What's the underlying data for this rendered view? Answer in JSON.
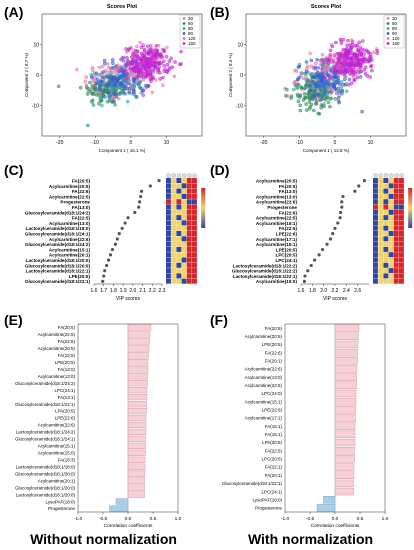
{
  "panel_labels": [
    "(A)",
    "(B)",
    "(C)",
    "(D)",
    "(E)",
    "(F)"
  ],
  "captions": {
    "left": "Without normalization",
    "right": "With normalization"
  },
  "colors": {
    "pink": "#e879a8",
    "magenta": "#c026d3",
    "blue": "#3b5bd6",
    "teal": "#3aa0a0",
    "green": "#2e8b57",
    "bar_pink": "#f7d0d6",
    "bar_blue": "#a9cfe8",
    "dot": "#555555"
  },
  "chart_data": [
    {
      "type": "scatter",
      "title": "Scores Plot",
      "xlabel": "Component 1 ( 16.1 %)",
      "ylabel": "Component 2 ( 8.7 %)",
      "xlim": [
        -25,
        20
      ],
      "ylim": [
        -20,
        20
      ],
      "xticks": [
        "-20",
        "-10",
        "0",
        "10"
      ],
      "yticks": [
        "-10",
        "0",
        "10"
      ],
      "legend": {
        "placement": "top-right",
        "entries": [
          "30",
          "60",
          "80",
          "90",
          "120",
          "150"
        ]
      },
      "clusters": [
        {
          "name": "30",
          "color": "pink",
          "cx": -6,
          "cy": -2,
          "sx": 6.5,
          "sy": 6,
          "n": 90
        },
        {
          "name": "60",
          "color": "green",
          "cx": -7,
          "cy": -5,
          "sx": 6,
          "sy": 5,
          "n": 90
        },
        {
          "name": "80",
          "color": "teal",
          "cx": -3,
          "cy": -3,
          "sx": 6,
          "sy": 5.5,
          "n": 90
        },
        {
          "name": "90",
          "color": "blue",
          "cx": -2,
          "cy": -1,
          "sx": 6.5,
          "sy": 6,
          "n": 110
        },
        {
          "name": "120",
          "color": "pink",
          "cx": 3,
          "cy": 3,
          "sx": 6,
          "sy": 5.5,
          "n": 90
        },
        {
          "name": "150",
          "color": "magenta",
          "cx": 5,
          "cy": 4,
          "sx": 5.5,
          "sy": 5,
          "n": 200
        }
      ]
    },
    {
      "type": "scatter",
      "title": "Scores Plot",
      "xlabel": "Component 1 ( 14.8 %)",
      "ylabel": "Component 2 ( 8.4 %)",
      "xlim": [
        -25,
        20
      ],
      "ylim": [
        -20,
        20
      ],
      "xticks": [
        "-20",
        "-10",
        "0",
        "10"
      ],
      "yticks": [
        "-10",
        "0",
        "10"
      ],
      "legend": {
        "placement": "top-right",
        "entries": [
          "30",
          "60",
          "80",
          "90",
          "120",
          "150"
        ]
      },
      "clusters": [
        {
          "name": "30",
          "color": "pink",
          "cx": -6,
          "cy": -3,
          "sx": 6.5,
          "sy": 6,
          "n": 90
        },
        {
          "name": "60",
          "color": "green",
          "cx": -6,
          "cy": -6,
          "sx": 6,
          "sy": 5,
          "n": 110
        },
        {
          "name": "80",
          "color": "teal",
          "cx": -3,
          "cy": -2,
          "sx": 6,
          "sy": 5.5,
          "n": 90
        },
        {
          "name": "90",
          "color": "blue",
          "cx": -2,
          "cy": -1,
          "sx": 6.5,
          "sy": 6,
          "n": 110
        },
        {
          "name": "120",
          "color": "pink",
          "cx": 3,
          "cy": 4,
          "sx": 6,
          "sy": 5.5,
          "n": 90
        },
        {
          "name": "150",
          "color": "magenta",
          "cx": 5,
          "cy": 5,
          "sx": 5.5,
          "sy": 5,
          "n": 200
        }
      ]
    },
    {
      "type": "scatter",
      "xlabel": "VIP scores",
      "xlim": [
        1.6,
        2.3
      ],
      "xticks": [
        1.6,
        1.7,
        1.8,
        1.9,
        2.0,
        2.1,
        2.2,
        2.3
      ],
      "heat_legend": {
        "high": "High",
        "low": "Low"
      },
      "heat_columns": [
        "30",
        "60",
        "80",
        "90",
        "120",
        "150"
      ],
      "features": [
        "FA(20:5)",
        "Acylcarnitine(20:5)",
        "FA(22:6)",
        "Acylcarnitine(22:5)",
        "Progesterone",
        "FA(13:0)",
        "Glucosylceramide(d18:1/24:2)",
        "FA(22:5)",
        "Acylcarnitine(13:0)",
        "Lactosylceramide(d18:1/18:0)",
        "Glucosylceramide(d18:1/24:1)",
        "Acylcarnitine(22:6)",
        "Glucosylceramide(d18:1/24:2)",
        "Acylcarnitine(15:1)",
        "Acylcarnitine(20:1)",
        "Lactosylceramide(d18:1/20:0)",
        "Glucosylceramide(d18:1/20:0)",
        "Lactosylceramide(d18:1/22:1)",
        "LPE(20:5)",
        "Glucosylceramide(d18:1/22:1)"
      ],
      "values": [
        2.27,
        2.18,
        2.09,
        2.08,
        2.07,
        2.06,
        2.02,
        1.95,
        1.92,
        1.89,
        1.86,
        1.84,
        1.82,
        1.79,
        1.77,
        1.75,
        1.73,
        1.71,
        1.7,
        1.69
      ],
      "heat_levels": [
        [
          -1,
          0,
          -1,
          0,
          1,
          1
        ],
        [
          -1,
          0,
          0,
          -1,
          1,
          1
        ],
        [
          -1,
          0,
          -1,
          0,
          1,
          1
        ],
        [
          -1,
          0,
          0,
          -1,
          1,
          1
        ],
        [
          1,
          0,
          1,
          0,
          -1,
          -1
        ],
        [
          -1,
          0,
          -1,
          0,
          1,
          1
        ],
        [
          -1,
          0,
          0,
          0,
          1,
          1
        ],
        [
          -1,
          0,
          -1,
          0,
          1,
          1
        ],
        [
          -1,
          0,
          0,
          -1,
          1,
          1
        ],
        [
          -1,
          0,
          0,
          0,
          1,
          1
        ],
        [
          -1,
          0,
          -1,
          0,
          1,
          1
        ],
        [
          -1,
          0,
          0,
          -1,
          1,
          1
        ],
        [
          -1,
          0,
          0,
          0,
          1,
          1
        ],
        [
          -1,
          0,
          -1,
          0,
          1,
          1
        ],
        [
          -1,
          0,
          0,
          0,
          1,
          1
        ],
        [
          -1,
          0,
          0,
          -1,
          1,
          1
        ],
        [
          -1,
          0,
          -1,
          0,
          1,
          1
        ],
        [
          -1,
          0,
          0,
          0,
          1,
          1
        ],
        [
          -1,
          0,
          -1,
          0,
          1,
          1
        ],
        [
          -1,
          0,
          0,
          -1,
          1,
          1
        ]
      ]
    },
    {
      "type": "scatter",
      "xlabel": "VIP scores",
      "xlim": [
        1.6,
        2.8
      ],
      "xticks": [
        1.6,
        1.8,
        2.0,
        2.2,
        2.4,
        2.6
      ],
      "heat_legend": {
        "high": "High",
        "low": "Low"
      },
      "heat_columns": [
        "30",
        "60",
        "80",
        "90",
        "120",
        "150"
      ],
      "features": [
        "Acylcarnitine(20:5)",
        "FA(20:5)",
        "FA(13:0)",
        "Acylcarnitine(13:0)",
        "Acylcarnitine(22:6)",
        "Progesterone",
        "FA(22:6)",
        "Acylcarnitine(22:5)",
        "Acylcarnitine(15:1)",
        "FA(22:5)",
        "LPE(22:6)",
        "Acylcarnitine(17:1)",
        "Acylcarnitine(15:1)",
        "LPE(20:5)",
        "LPC(20:5)",
        "LPC(24:1)",
        "Lactosylceramide(d18:1/22:2)",
        "Glucosylceramide(d18:1/22:2)",
        "Lactosylceramide(d18:1/22:1)",
        "Acylcarnitine(15:0)"
      ],
      "values": [
        2.72,
        2.62,
        2.55,
        2.34,
        2.32,
        2.32,
        2.3,
        2.29,
        2.25,
        2.2,
        2.16,
        2.12,
        2.06,
        1.98,
        1.92,
        1.84,
        1.78,
        1.72,
        1.67,
        1.66
      ],
      "heat_levels": [
        [
          -1,
          0,
          -1,
          0,
          1,
          1
        ],
        [
          -1,
          0,
          0,
          -1,
          1,
          1
        ],
        [
          -1,
          0,
          -1,
          0,
          1,
          1
        ],
        [
          -1,
          0,
          0,
          -1,
          1,
          1
        ],
        [
          -1,
          0,
          -1,
          0,
          1,
          1
        ],
        [
          1,
          0,
          1,
          0,
          -1,
          -1
        ],
        [
          -1,
          0,
          0,
          -1,
          1,
          1
        ],
        [
          -1,
          0,
          -1,
          0,
          1,
          1
        ],
        [
          -1,
          0,
          0,
          0,
          1,
          1
        ],
        [
          -1,
          0,
          -1,
          0,
          1,
          1
        ],
        [
          -1,
          0,
          0,
          -1,
          1,
          1
        ],
        [
          -1,
          0,
          -1,
          0,
          1,
          1
        ],
        [
          -1,
          0,
          0,
          0,
          1,
          1
        ],
        [
          -1,
          0,
          -1,
          0,
          1,
          1
        ],
        [
          -1,
          0,
          0,
          -1,
          1,
          1
        ],
        [
          -1,
          0,
          0,
          0,
          1,
          1
        ],
        [
          -1,
          0,
          -1,
          0,
          1,
          1
        ],
        [
          -1,
          0,
          0,
          -1,
          1,
          1
        ],
        [
          -1,
          0,
          -1,
          0,
          1,
          1
        ],
        [
          -1,
          0,
          0,
          0,
          1,
          1
        ]
      ]
    },
    {
      "type": "bar",
      "orientation": "horizontal",
      "xlabel": "Correlation coefficients",
      "xlim": [
        -1.0,
        1.0
      ],
      "xticks": [
        "-1.0",
        "-0.5",
        "0.0",
        "0.5",
        "1.0"
      ],
      "categories": [
        "FA(20:5)",
        "Acylcarnitine(22:5)",
        "FA(22:6)",
        "Acylcarnitine(20:5)",
        "FA(22:5)",
        "LPE(20:5)",
        "FA(13:0)",
        "Acylcarnitine(13:0)",
        "Glucosylceramide(d18:1/24:2)",
        "LPC(24:1)",
        "FA(13:1)",
        "Glucosylceramide(d18:1/22:1)",
        "LPA(20:5)",
        "LPE(22:6)",
        "Acylcarnitine(22:6)",
        "Lactosylceramide(d18:1/24:2)",
        "Glucosylceramide(d18:1/24:1)",
        "Acylcarnitine(15:1)",
        "Acylcarnitine(15:0)",
        "FA(18:3)",
        "Lactosylceramide(d18:1/18:0)",
        "Glucosylceramide(d18:1/20:0)",
        "Acylcarnitine(20:1)",
        "Glucosylceramide(d18:1/20:0)",
        "Lactosylceramide(d18:1/20:0)",
        "LysoPAF(18:0)",
        "Progesterone"
      ],
      "values": [
        0.46,
        0.44,
        0.43,
        0.42,
        0.41,
        0.4,
        0.4,
        0.39,
        0.39,
        0.38,
        0.38,
        0.37,
        0.37,
        0.36,
        0.36,
        0.36,
        0.35,
        0.35,
        0.35,
        0.34,
        0.34,
        0.34,
        0.33,
        0.33,
        0.33,
        -0.24,
        -0.37
      ]
    },
    {
      "type": "bar",
      "orientation": "horizontal",
      "xlabel": "Correlation coefficients",
      "xlim": [
        -1.0,
        1.0
      ],
      "xticks": [
        "-1.0",
        "-0.5",
        "0.0",
        "0.5",
        "1.0"
      ],
      "categories": [
        "FA(20:5)",
        "Acylcarnitine(20:5)",
        "LPE(20:5)",
        "FA(22:6)",
        "FA(20:1)",
        "Acylcarnitine(22:6)",
        "Acylcarnitine(13:0)",
        "Acylcarnitine(22:5)",
        "LPC(24:0)",
        "Acylcarnitine(15:1)",
        "LPE(22:6)",
        "Acylcarnitine(17:1)",
        "FA(15:1)",
        "FA(16:1)",
        "LPA(20:5)",
        "FA(22:5)",
        "LPC(20:5)",
        "FA(22:1)",
        "FA(20:1)",
        "Glucosylceramide(d18:1/22:1)",
        "LPC(24:1)",
        "LysoPAF(18:0)",
        "Progesterone"
      ],
      "values": [
        0.48,
        0.47,
        0.46,
        0.45,
        0.45,
        0.44,
        0.43,
        0.43,
        0.42,
        0.42,
        0.41,
        0.41,
        0.4,
        0.4,
        0.4,
        0.39,
        0.39,
        0.38,
        0.38,
        0.37,
        0.37,
        -0.23,
        -0.36
      ]
    }
  ]
}
